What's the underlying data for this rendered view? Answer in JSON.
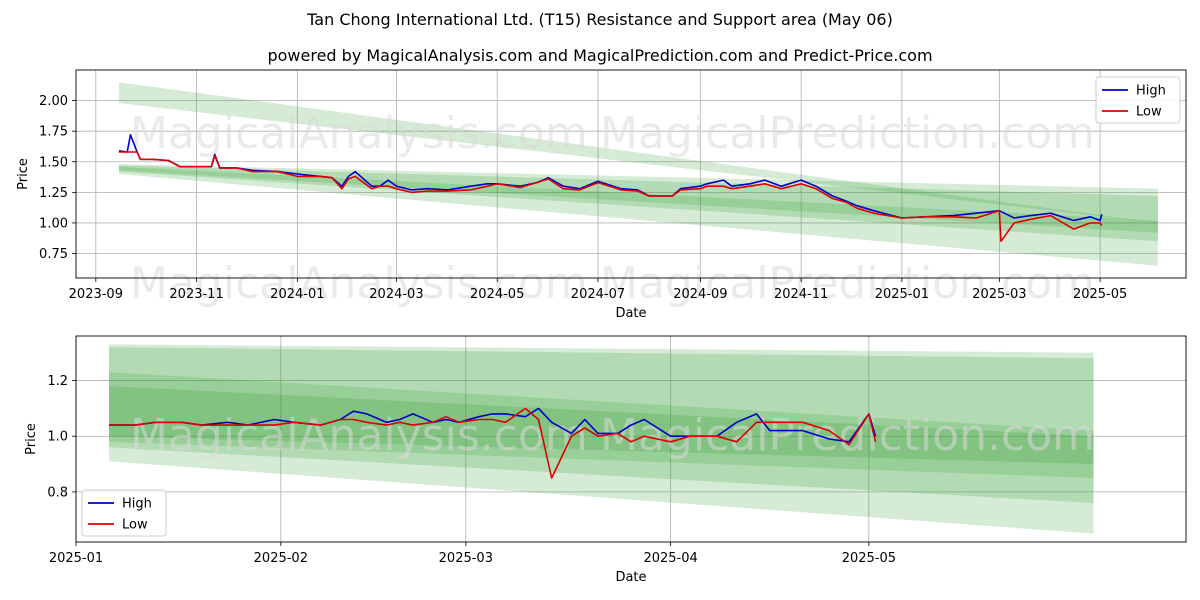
{
  "title": "Tan Chong International Ltd. (T15) Resistance and Support area (May 06)",
  "subtitle": "powered by MagicalAnalysis.com and MagicalPrediction.com and Predict-Price.com",
  "watermarks": [
    "MagicalAnalysis.com",
    "MagicalPrediction.com"
  ],
  "colors": {
    "high": "#0000cc",
    "low": "#dd0000",
    "band": "#2e9c2e"
  },
  "chart_data": [
    {
      "type": "line",
      "xlabel": "Date",
      "ylabel": "Price",
      "xlim": [
        "2023-08-20",
        "2025-06-22"
      ],
      "ylim": [
        0.55,
        2.25
      ],
      "xticks": [
        "2023-09",
        "2023-11",
        "2024-01",
        "2024-03",
        "2024-05",
        "2024-07",
        "2024-09",
        "2024-11",
        "2025-01",
        "2025-03",
        "2025-05"
      ],
      "yticks": [
        "0.75",
        "1.00",
        "1.25",
        "1.50",
        "1.75",
        "2.00"
      ],
      "legend": "top-right",
      "grid": true,
      "bands": [
        {
          "x": [
            "2023-09-15",
            "2025-06-05"
          ],
          "upper": [
            2.15,
            1.0
          ],
          "lower": [
            1.98,
            1.0
          ]
        },
        {
          "x": [
            "2023-09-15",
            "2025-06-05"
          ],
          "upper": [
            1.48,
            1.28
          ],
          "lower": [
            1.4,
            0.65
          ]
        },
        {
          "x": [
            "2023-09-15",
            "2025-06-05"
          ],
          "upper": [
            1.47,
            1.22
          ],
          "lower": [
            1.42,
            0.85
          ]
        },
        {
          "x": [
            "2023-09-15",
            "2025-06-05"
          ],
          "upper": [
            1.46,
            1.02
          ],
          "lower": [
            1.43,
            0.92
          ]
        }
      ],
      "series": [
        {
          "name": "High",
          "x": [
            "2023-09-15",
            "2023-09-20",
            "2023-09-22",
            "2023-09-26",
            "2023-09-28",
            "2023-10-05",
            "2023-10-15",
            "2023-10-22",
            "2023-11-10",
            "2023-11-12",
            "2023-11-15",
            "2023-11-25",
            "2023-12-05",
            "2023-12-20",
            "2024-01-01",
            "2024-01-15",
            "2024-01-22",
            "2024-01-28",
            "2024-02-01",
            "2024-02-05",
            "2024-02-15",
            "2024-02-20",
            "2024-02-25",
            "2024-03-01",
            "2024-03-10",
            "2024-03-20",
            "2024-04-01",
            "2024-04-15",
            "2024-04-25",
            "2024-05-01",
            "2024-05-15",
            "2024-05-25",
            "2024-06-01",
            "2024-06-10",
            "2024-06-20",
            "2024-07-01",
            "2024-07-15",
            "2024-07-25",
            "2024-08-01",
            "2024-08-15",
            "2024-08-20",
            "2024-09-01",
            "2024-09-05",
            "2024-09-15",
            "2024-09-20",
            "2024-10-01",
            "2024-10-10",
            "2024-10-20",
            "2024-11-01",
            "2024-11-10",
            "2024-11-20",
            "2024-11-28",
            "2024-12-05",
            "2024-12-15",
            "2025-01-01",
            "2025-01-15",
            "2025-02-01",
            "2025-02-15",
            "2025-03-01",
            "2025-03-10",
            "2025-03-20",
            "2025-04-01",
            "2025-04-15",
            "2025-04-25",
            "2025-05-01",
            "2025-05-02"
          ],
          "values": [
            1.59,
            1.58,
            1.72,
            1.58,
            1.52,
            1.52,
            1.51,
            1.46,
            1.46,
            1.56,
            1.45,
            1.45,
            1.43,
            1.42,
            1.4,
            1.38,
            1.37,
            1.3,
            1.38,
            1.42,
            1.3,
            1.3,
            1.35,
            1.3,
            1.27,
            1.28,
            1.27,
            1.3,
            1.32,
            1.32,
            1.3,
            1.33,
            1.37,
            1.3,
            1.28,
            1.34,
            1.28,
            1.27,
            1.22,
            1.22,
            1.28,
            1.3,
            1.32,
            1.35,
            1.3,
            1.32,
            1.35,
            1.3,
            1.35,
            1.3,
            1.22,
            1.18,
            1.14,
            1.1,
            1.04,
            1.05,
            1.06,
            1.08,
            1.1,
            1.04,
            1.06,
            1.08,
            1.02,
            1.05,
            1.02,
            1.07
          ]
        },
        {
          "name": "Low",
          "x": [
            "2023-09-15",
            "2023-09-20",
            "2023-09-22",
            "2023-09-26",
            "2023-09-28",
            "2023-10-05",
            "2023-10-15",
            "2023-10-22",
            "2023-11-10",
            "2023-11-12",
            "2023-11-15",
            "2023-11-25",
            "2023-12-05",
            "2023-12-20",
            "2024-01-01",
            "2024-01-15",
            "2024-01-22",
            "2024-01-28",
            "2024-02-01",
            "2024-02-05",
            "2024-02-15",
            "2024-02-20",
            "2024-02-25",
            "2024-03-01",
            "2024-03-10",
            "2024-03-20",
            "2024-04-01",
            "2024-04-15",
            "2024-04-25",
            "2024-05-01",
            "2024-05-15",
            "2024-05-25",
            "2024-06-01",
            "2024-06-10",
            "2024-06-20",
            "2024-07-01",
            "2024-07-15",
            "2024-07-25",
            "2024-08-01",
            "2024-08-15",
            "2024-08-20",
            "2024-09-01",
            "2024-09-05",
            "2024-09-15",
            "2024-09-20",
            "2024-10-01",
            "2024-10-10",
            "2024-10-20",
            "2024-11-01",
            "2024-11-10",
            "2024-11-20",
            "2024-11-28",
            "2024-12-05",
            "2024-12-15",
            "2025-01-01",
            "2025-01-15",
            "2025-02-01",
            "2025-02-15",
            "2025-03-01",
            "2025-03-02",
            "2025-03-10",
            "2025-03-20",
            "2025-04-01",
            "2025-04-15",
            "2025-04-25",
            "2025-05-01",
            "2025-05-02"
          ],
          "values": [
            1.58,
            1.58,
            1.58,
            1.58,
            1.52,
            1.52,
            1.51,
            1.46,
            1.46,
            1.55,
            1.45,
            1.45,
            1.42,
            1.42,
            1.38,
            1.38,
            1.37,
            1.28,
            1.36,
            1.38,
            1.28,
            1.3,
            1.3,
            1.28,
            1.25,
            1.26,
            1.26,
            1.27,
            1.3,
            1.32,
            1.29,
            1.33,
            1.36,
            1.28,
            1.27,
            1.33,
            1.27,
            1.26,
            1.22,
            1.22,
            1.27,
            1.28,
            1.3,
            1.3,
            1.28,
            1.3,
            1.32,
            1.28,
            1.32,
            1.28,
            1.2,
            1.17,
            1.12,
            1.08,
            1.04,
            1.05,
            1.05,
            1.04,
            1.1,
            0.85,
            1.0,
            1.03,
            1.06,
            0.95,
            1.0,
            1.0,
            0.98
          ]
        }
      ]
    },
    {
      "type": "line",
      "xlabel": "Date",
      "ylabel": "Price",
      "xlim": [
        "2025-01-01",
        "2025-06-18"
      ],
      "ylim": [
        0.62,
        1.36
      ],
      "xticks": [
        "2025-01",
        "2025-02",
        "2025-03",
        "2025-04",
        "2025-05"
      ],
      "yticks": [
        "0.8",
        "1.0",
        "1.2"
      ],
      "legend": "bottom-left",
      "grid": true,
      "bands": [
        {
          "x": [
            "2025-01-06",
            "2025-06-04"
          ],
          "upper": [
            1.33,
            1.3
          ],
          "lower": [
            0.91,
            0.65
          ]
        },
        {
          "x": [
            "2025-01-06",
            "2025-06-04"
          ],
          "upper": [
            1.32,
            1.28
          ],
          "lower": [
            0.96,
            0.76
          ]
        },
        {
          "x": [
            "2025-01-06",
            "2025-06-04"
          ],
          "upper": [
            1.23,
            1.02
          ],
          "lower": [
            0.98,
            0.85
          ]
        },
        {
          "x": [
            "2025-01-06",
            "2025-06-04"
          ],
          "upper": [
            1.18,
            1.0
          ],
          "lower": [
            1.0,
            0.9
          ]
        }
      ],
      "series": [
        {
          "name": "High",
          "x": [
            "2025-01-06",
            "2025-01-10",
            "2025-01-13",
            "2025-01-17",
            "2025-01-20",
            "2025-01-24",
            "2025-01-27",
            "2025-01-31",
            "2025-02-03",
            "2025-02-07",
            "2025-02-10",
            "2025-02-12",
            "2025-02-14",
            "2025-02-17",
            "2025-02-19",
            "2025-02-21",
            "2025-02-24",
            "2025-02-26",
            "2025-02-28",
            "2025-03-03",
            "2025-03-05",
            "2025-03-07",
            "2025-03-10",
            "2025-03-12",
            "2025-03-14",
            "2025-03-17",
            "2025-03-19",
            "2025-03-21",
            "2025-03-24",
            "2025-03-26",
            "2025-03-28",
            "2025-04-01",
            "2025-04-04",
            "2025-04-08",
            "2025-04-11",
            "2025-04-14",
            "2025-04-16",
            "2025-04-18",
            "2025-04-21",
            "2025-04-25",
            "2025-04-28",
            "2025-05-01",
            "2025-05-02"
          ],
          "values": [
            1.04,
            1.04,
            1.05,
            1.05,
            1.04,
            1.05,
            1.04,
            1.06,
            1.05,
            1.04,
            1.06,
            1.09,
            1.08,
            1.05,
            1.06,
            1.08,
            1.05,
            1.06,
            1.05,
            1.07,
            1.08,
            1.08,
            1.07,
            1.1,
            1.05,
            1.01,
            1.06,
            1.01,
            1.01,
            1.04,
            1.06,
            1.0,
            1.0,
            1.0,
            1.05,
            1.08,
            1.02,
            1.02,
            1.02,
            0.99,
            0.98,
            1.08,
            1.0
          ]
        },
        {
          "name": "Low",
          "x": [
            "2025-01-06",
            "2025-01-10",
            "2025-01-13",
            "2025-01-17",
            "2025-01-20",
            "2025-01-24",
            "2025-01-27",
            "2025-01-31",
            "2025-02-03",
            "2025-02-07",
            "2025-02-10",
            "2025-02-12",
            "2025-02-14",
            "2025-02-17",
            "2025-02-19",
            "2025-02-21",
            "2025-02-24",
            "2025-02-26",
            "2025-02-28",
            "2025-03-03",
            "2025-03-05",
            "2025-03-07",
            "2025-03-10",
            "2025-03-12",
            "2025-03-14",
            "2025-03-17",
            "2025-03-19",
            "2025-03-21",
            "2025-03-24",
            "2025-03-26",
            "2025-03-28",
            "2025-04-01",
            "2025-04-04",
            "2025-04-08",
            "2025-04-11",
            "2025-04-14",
            "2025-04-16",
            "2025-04-18",
            "2025-04-21",
            "2025-04-25",
            "2025-04-28",
            "2025-05-01",
            "2025-05-02"
          ],
          "values": [
            1.04,
            1.04,
            1.05,
            1.05,
            1.04,
            1.04,
            1.04,
            1.04,
            1.05,
            1.04,
            1.06,
            1.06,
            1.05,
            1.04,
            1.05,
            1.04,
            1.05,
            1.07,
            1.05,
            1.06,
            1.06,
            1.05,
            1.1,
            1.06,
            0.85,
            1.0,
            1.03,
            1.0,
            1.01,
            0.98,
            1.0,
            0.98,
            1.0,
            1.0,
            0.98,
            1.05,
            1.05,
            1.05,
            1.05,
            1.02,
            0.97,
            1.08,
            0.98
          ]
        }
      ]
    }
  ]
}
